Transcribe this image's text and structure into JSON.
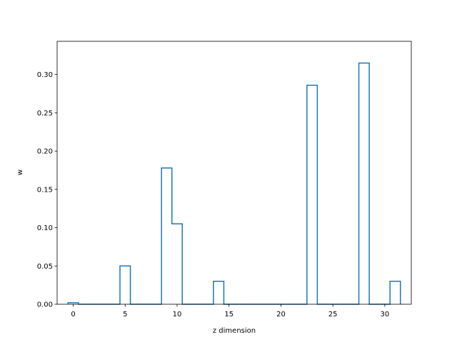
{
  "chart_data": {
    "type": "line",
    "style": "step-histogram",
    "xlabel": "z dimension",
    "ylabel": "w",
    "xlim": [
      -1.55,
      32.55
    ],
    "ylim": [
      0,
      0.3434
    ],
    "x_ticks": [
      0,
      5,
      10,
      15,
      20,
      25,
      30
    ],
    "y_ticks": [
      0.0,
      0.05,
      0.1,
      0.15,
      0.2,
      0.25,
      0.3
    ],
    "y_tick_labels": [
      "0.00",
      "0.05",
      "0.10",
      "0.15",
      "0.20",
      "0.25",
      "0.30"
    ],
    "grid": false,
    "series": [
      {
        "color": "#1f77b4",
        "x": [
          0,
          1,
          2,
          3,
          4,
          5,
          6,
          7,
          8,
          9,
          10,
          11,
          12,
          13,
          14,
          15,
          16,
          17,
          18,
          19,
          20,
          21,
          22,
          23,
          24,
          25,
          26,
          27,
          28,
          29,
          30,
          31
        ],
        "values": [
          0.002,
          0,
          0,
          0,
          0,
          0.05,
          0,
          0,
          0,
          0.178,
          0.105,
          0,
          0,
          0,
          0.03,
          0,
          0,
          0,
          0,
          0,
          0,
          0,
          0,
          0.286,
          0,
          0,
          0,
          0,
          0.315,
          0,
          0,
          0.03
        ]
      }
    ]
  }
}
